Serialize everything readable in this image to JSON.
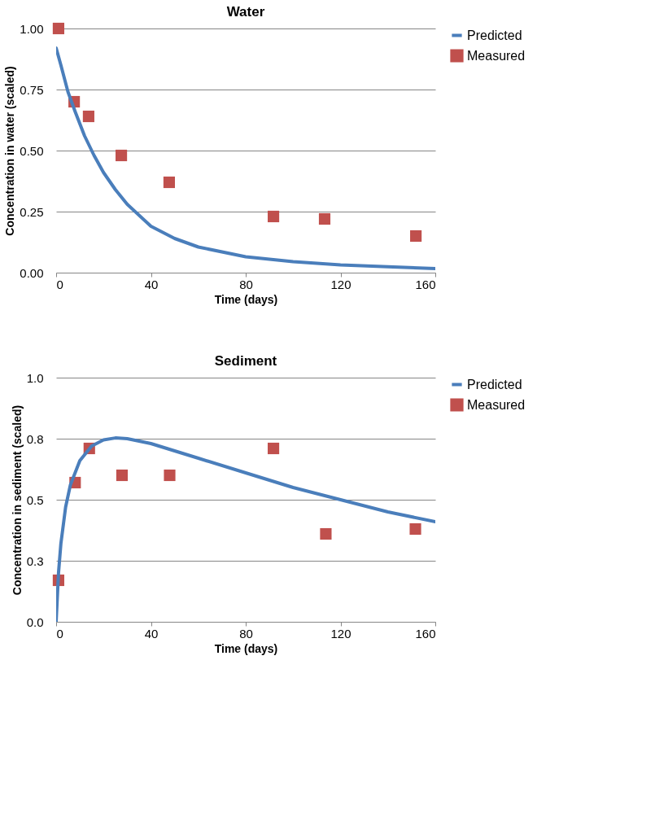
{
  "chart_data": [
    {
      "type": "line",
      "title": "Water",
      "xlabel": "Time (days)",
      "ylabel": "Concentration in water (scaled)",
      "xlim": [
        0,
        160
      ],
      "xticks": [
        0,
        40,
        80,
        120,
        160
      ],
      "ylim": [
        0,
        1
      ],
      "yticks": [
        {
          "value": 0,
          "label": "0.00"
        },
        {
          "value": 0.25,
          "label": "0.25"
        },
        {
          "value": 0.5,
          "label": "0.50"
        },
        {
          "value": 0.75,
          "label": "0.75"
        },
        {
          "value": 1,
          "label": "1.00"
        }
      ],
      "grid": "y",
      "legend": "right",
      "series": [
        {
          "name": "Predicted",
          "color": "#4a7ebb",
          "x": [
            0,
            2,
            5,
            8,
            12,
            16,
            20,
            25,
            30,
            40,
            50,
            60,
            80,
            100,
            120,
            140,
            160
          ],
          "values": [
            0.92,
            0.85,
            0.74,
            0.66,
            0.56,
            0.48,
            0.41,
            0.34,
            0.28,
            0.19,
            0.14,
            0.105,
            0.065,
            0.045,
            0.032,
            0.024,
            0.017
          ]
        },
        {
          "name": "Measured",
          "type": "scatter",
          "marker": "square",
          "color": "#c0504d",
          "x": [
            1,
            7.6,
            13.7,
            27.5,
            47.7,
            91.7,
            113.3,
            151.8
          ],
          "values": [
            1.0,
            0.7,
            0.64,
            0.48,
            0.37,
            0.23,
            0.22,
            0.15
          ]
        }
      ]
    },
    {
      "type": "line",
      "title": "Sediment",
      "xlabel": "Time (days)",
      "ylabel": "Concentration in sediment (scaled)",
      "xlim": [
        0,
        160
      ],
      "xticks": [
        0,
        40,
        80,
        120,
        160
      ],
      "ylim": [
        0,
        1
      ],
      "yticks": [
        {
          "value": 0,
          "label": "0.0"
        },
        {
          "value": 0.25,
          "label": "0.3"
        },
        {
          "value": 0.5,
          "label": "0.5"
        },
        {
          "value": 0.75,
          "label": "0.8"
        },
        {
          "value": 1,
          "label": "1.0"
        }
      ],
      "grid": "y",
      "legend": "right",
      "series": [
        {
          "name": "Predicted",
          "color": "#4a7ebb",
          "x": [
            0,
            1,
            2,
            4,
            6,
            10,
            15,
            20,
            25,
            30,
            40,
            50,
            60,
            80,
            100,
            120,
            140,
            160
          ],
          "values": [
            0,
            0.2,
            0.32,
            0.47,
            0.56,
            0.66,
            0.72,
            0.745,
            0.753,
            0.75,
            0.73,
            0.7,
            0.67,
            0.61,
            0.55,
            0.5,
            0.45,
            0.41
          ]
        },
        {
          "name": "Measured",
          "type": "scatter",
          "marker": "square",
          "color": "#c0504d",
          "x": [
            1,
            8,
            14,
            27.8,
            47.9,
            91.7,
            113.8,
            151.6
          ],
          "values": [
            0.17,
            0.57,
            0.71,
            0.6,
            0.6,
            0.71,
            0.36,
            0.38
          ]
        }
      ]
    }
  ]
}
